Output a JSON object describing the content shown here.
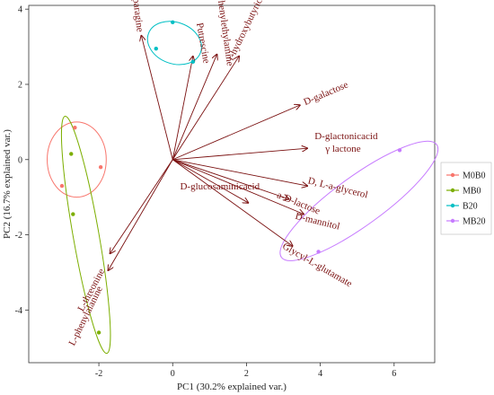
{
  "chart_data": {
    "type": "scatter",
    "title": "",
    "xlabel": "PC1 (30.2% explained var.)",
    "ylabel": "PC2 (16.7% explained var.)",
    "xlim": [
      -3.9,
      7.1
    ],
    "ylim": [
      -5.4,
      4.1
    ],
    "x_ticks": [
      -2,
      0,
      2,
      4,
      6
    ],
    "y_ticks": [
      -4,
      -2,
      0,
      2,
      4
    ],
    "grid": false,
    "legend_position": "right",
    "series": [
      {
        "name": "M0B0",
        "color": "#F8766D",
        "points": [
          [
            -2.65,
            0.85
          ],
          [
            -1.95,
            -0.2
          ],
          [
            -3.0,
            -0.7
          ]
        ],
        "ellipse": {
          "cx": -2.6,
          "cy": 0.0,
          "rx": 0.8,
          "ry": 1.0,
          "angle": 0
        }
      },
      {
        "name": "MB0",
        "color": "#7CAE00",
        "points": [
          [
            -2.75,
            0.15
          ],
          [
            -2.7,
            -1.45
          ],
          [
            -2.0,
            -4.6
          ]
        ],
        "ellipse": {
          "cx": -2.35,
          "cy": -2.0,
          "rx": 0.35,
          "ry": 3.2,
          "angle": 10
        }
      },
      {
        "name": "B20",
        "color": "#00BFC4",
        "points": [
          [
            0.0,
            3.65
          ],
          [
            -0.45,
            2.95
          ],
          [
            0.55,
            2.6
          ]
        ],
        "ellipse": {
          "cx": 0.05,
          "cy": 3.1,
          "rx": 0.75,
          "ry": 0.55,
          "angle": -20
        }
      },
      {
        "name": "MB20",
        "color": "#C77CFF",
        "points": [
          [
            6.15,
            0.25
          ],
          [
            3.95,
            -2.45
          ]
        ],
        "ellipse": {
          "cx": 5.05,
          "cy": -1.1,
          "rx": 2.6,
          "ry": 0.65,
          "angle": 36
        }
      }
    ],
    "vectors": [
      {
        "label": "L-asparagine",
        "x": -0.85,
        "y": 3.3
      },
      {
        "label": "Putrescine",
        "x": 0.55,
        "y": 2.75
      },
      {
        "label": "Phenylethylamine",
        "x": 1.2,
        "y": 2.8
      },
      {
        "label": "r-hydroxybutyric acid",
        "x": 1.8,
        "y": 2.75
      },
      {
        "label": "D-galactose",
        "x": 3.45,
        "y": 1.45
      },
      {
        "label": "D-glactonicacid",
        "x": 3.65,
        "y": 0.3
      },
      {
        "label": "γ lactone",
        "x": 3.65,
        "y": 0.3
      },
      {
        "label": "D, L-a-glycerol",
        "x": 3.65,
        "y": -0.7
      },
      {
        "label": "a-D-lactose",
        "x": 3.15,
        "y": -1.05
      },
      {
        "label": "D-mannitol",
        "x": 3.55,
        "y": -1.45
      },
      {
        "label": "D-glucosaminicacid",
        "x": 2.05,
        "y": -1.15
      },
      {
        "label": "Glycyl-L-glutamate",
        "x": 3.25,
        "y": -2.3
      },
      {
        "label": "L-threonine",
        "x": -1.7,
        "y": -2.5
      },
      {
        "label": "L-phenylalanine",
        "x": -1.75,
        "y": -2.95
      }
    ]
  }
}
